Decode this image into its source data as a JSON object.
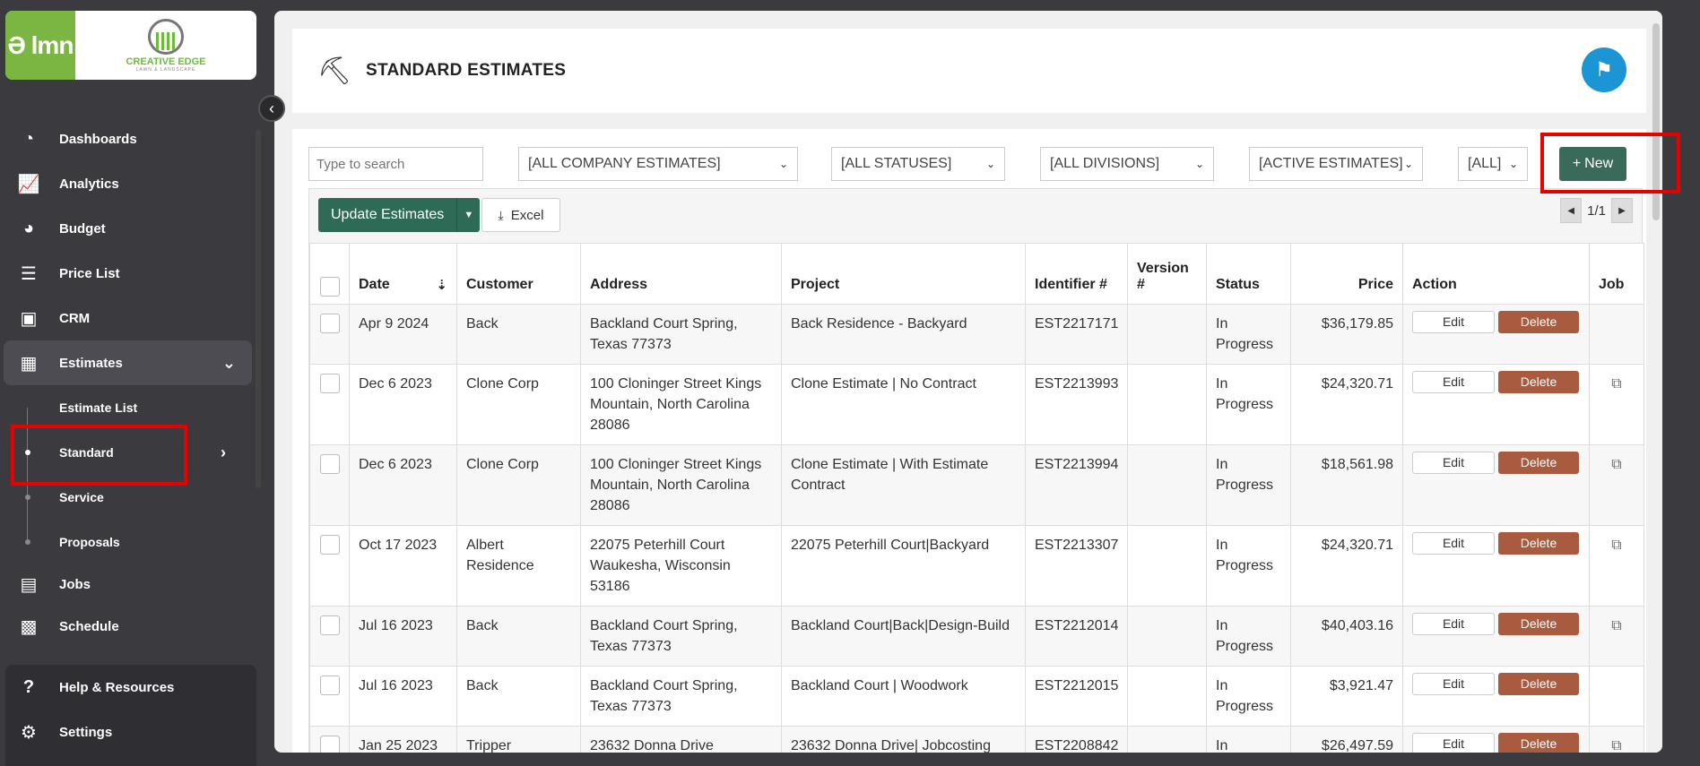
{
  "sidebar": {
    "logo_text": "Ə lmn",
    "brand_name": "CREATIVE EDGE",
    "brand_sub": "LAWN & LANDSCAPE",
    "nav": [
      {
        "label": "Dashboards",
        "icon": "speedometer-icon"
      },
      {
        "label": "Analytics",
        "icon": "line-chart-icon"
      },
      {
        "label": "Budget",
        "icon": "pie-chart-icon"
      },
      {
        "label": "Price List",
        "icon": "list-icon"
      },
      {
        "label": "CRM",
        "icon": "contact-card-icon"
      },
      {
        "label": "Estimates",
        "icon": "calculator-icon"
      }
    ],
    "estimates_sub": [
      {
        "label": "Estimate List"
      },
      {
        "label": "Standard"
      },
      {
        "label": "Service"
      },
      {
        "label": "Proposals"
      }
    ],
    "nav_after": [
      {
        "label": "Jobs",
        "icon": "jobs-icon"
      },
      {
        "label": "Schedule",
        "icon": "calendar-icon"
      }
    ],
    "bottom": [
      {
        "label": "Help & Resources",
        "icon": "help-icon"
      },
      {
        "label": "Settings",
        "icon": "gear-icon"
      }
    ]
  },
  "header": {
    "title": "STANDARD ESTIMATES"
  },
  "toolbar": {
    "search_placeholder": "Type to search",
    "filters": [
      "[ALL COMPANY ESTIMATES]",
      "[ALL STATUSES]",
      "[ALL DIVISIONS]",
      "[ACTIVE ESTIMATES]",
      "[ALL]"
    ],
    "new_label": "New",
    "update_label": "Update Estimates",
    "excel_label": "Excel",
    "page_label": "1/1"
  },
  "table": {
    "columns": [
      "Date",
      "Customer",
      "Address",
      "Project",
      "Identifier #",
      "Version #",
      "Status",
      "Price",
      "Action",
      "Job"
    ],
    "edit_label": "Edit",
    "delete_label": "Delete",
    "rows": [
      {
        "date": "Apr 9 2024",
        "customer": "Back",
        "address": "Backland Court Spring, Texas 77373",
        "project": "Back Residence - Backyard",
        "id": "EST2217171",
        "version": "",
        "status": "In Progress",
        "price": "$36,179.85",
        "job": false
      },
      {
        "date": "Dec 6 2023",
        "customer": "Clone Corp",
        "address": "100 Cloninger Street Kings Mountain, North Carolina 28086",
        "project": "Clone Estimate | No Contract",
        "id": "EST2213993",
        "version": "",
        "status": "In Progress",
        "price": "$24,320.71",
        "job": true
      },
      {
        "date": "Dec 6 2023",
        "customer": "Clone Corp",
        "address": "100 Cloninger Street Kings Mountain, North Carolina 28086",
        "project": "Clone Estimate | With Estimate Contract",
        "id": "EST2213994",
        "version": "",
        "status": "In Progress",
        "price": "$18,561.98",
        "job": true
      },
      {
        "date": "Oct 17 2023",
        "customer": "Albert Residence",
        "address": "22075 Peterhill Court Waukesha, Wisconsin 53186",
        "project": "22075 Peterhill Court|Backyard",
        "id": "EST2213307",
        "version": "",
        "status": "In Progress",
        "price": "$24,320.71",
        "job": true
      },
      {
        "date": "Jul 16 2023",
        "customer": "Back",
        "address": "Backland Court Spring, Texas 77373",
        "project": "Backland Court|Back|Design-Build",
        "id": "EST2212014",
        "version": "",
        "status": "In Progress",
        "price": "$40,403.16",
        "job": true
      },
      {
        "date": "Jul 16 2023",
        "customer": "Back",
        "address": "Backland Court Spring, Texas 77373",
        "project": "Backland Court | Woodwork",
        "id": "EST2212015",
        "version": "",
        "status": "In Progress",
        "price": "$3,921.47",
        "job": false
      },
      {
        "date": "Jan 25 2023",
        "customer": "Tripper",
        "address": "23632 Donna Drive",
        "project": "23632 Donna Drive| Jobcosting",
        "id": "EST2208842",
        "version": "",
        "status": "In",
        "price": "$26,497.59",
        "job": true
      }
    ]
  },
  "colors": {
    "accent": "#2e6b57",
    "delete": "#a85b3f",
    "highlight": "#e60000"
  }
}
